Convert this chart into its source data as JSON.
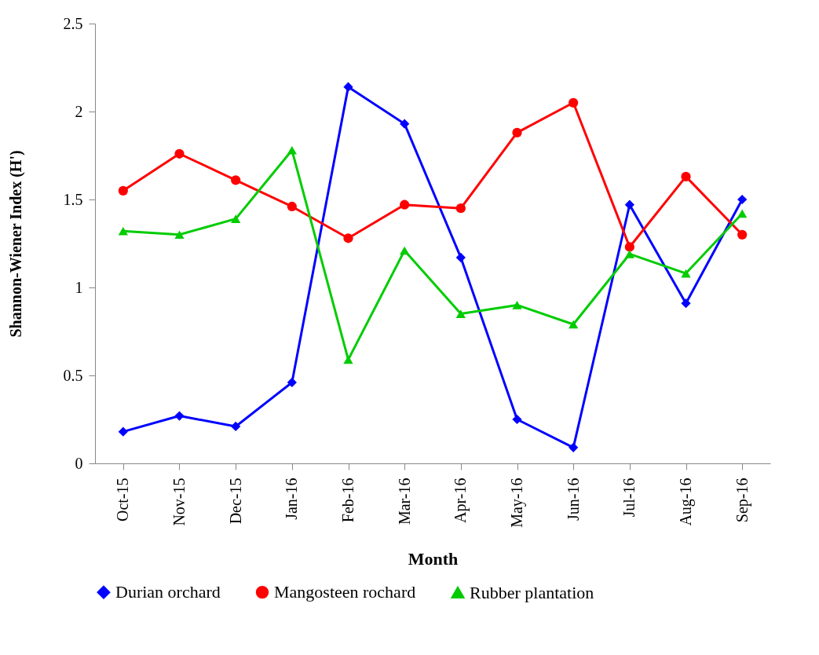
{
  "chart_data": {
    "type": "line",
    "xlabel": "Month",
    "ylabel": "Shannon-Wiener Index (H')",
    "categories": [
      "Oct-15",
      "Nov-15",
      "Dec-15",
      "Jan-16",
      "Feb-16",
      "Mar-16",
      "Apr-16",
      "May-16",
      "Jun-16",
      "Jul-16",
      "Aug-16",
      "Sep-16"
    ],
    "series": [
      {
        "name": "Durian orchard",
        "color": "#0000ff",
        "marker": "diamond",
        "values": [
          0.18,
          0.27,
          0.21,
          0.46,
          2.14,
          1.93,
          1.17,
          0.25,
          0.09,
          1.47,
          0.91,
          1.5
        ]
      },
      {
        "name": "Mangosteen rochard",
        "color": "#ff0000",
        "marker": "circle",
        "values": [
          1.55,
          1.76,
          1.61,
          1.46,
          1.28,
          1.47,
          1.45,
          1.88,
          2.05,
          1.23,
          1.63,
          1.3
        ]
      },
      {
        "name": "Rubber plantation",
        "color": "#00cc00",
        "marker": "triangle",
        "values": [
          1.32,
          1.3,
          1.39,
          1.78,
          0.59,
          1.21,
          0.85,
          0.9,
          0.79,
          1.19,
          1.08,
          1.42
        ]
      }
    ],
    "ylim": [
      0,
      2.5
    ],
    "yticks": [
      0,
      0.5,
      1,
      1.5,
      2,
      2.5
    ],
    "grid": false,
    "legend": "bottom",
    "line_style": "solid"
  }
}
